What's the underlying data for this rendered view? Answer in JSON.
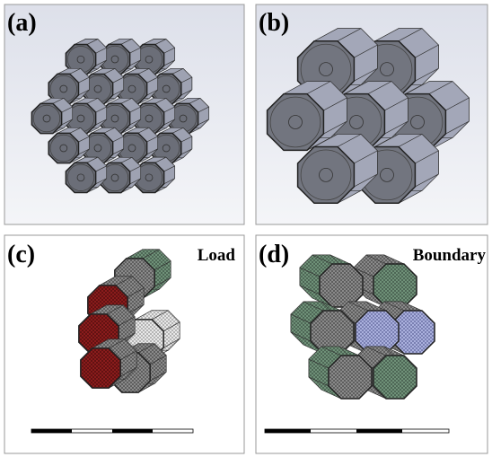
{
  "panels": [
    {
      "label": "(a)"
    },
    {
      "label": "(b)"
    },
    {
      "label": "(c)",
      "caption": "Load"
    },
    {
      "label": "(d)",
      "caption": "Boundary"
    }
  ]
}
